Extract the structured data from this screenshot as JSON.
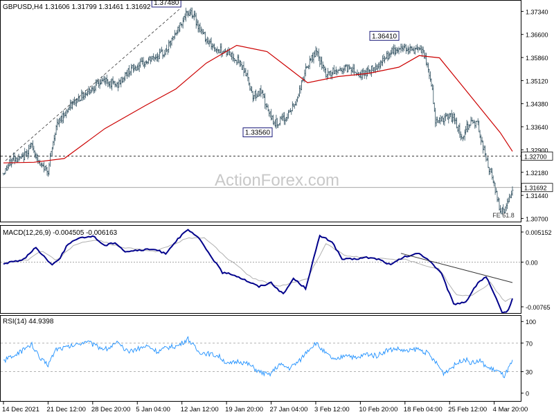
{
  "chart_data": [
    {
      "type": "candlestick",
      "panel": "price",
      "header": "GBPUSD,H4  1.31606 1.31799 1.31461 1.31692",
      "y_ticks": [
        "1.37340",
        "1.36600",
        "1.35860",
        "1.35120",
        "1.34380",
        "1.33640",
        "1.32900",
        "1.32180",
        "1.31440",
        "1.30700"
      ],
      "y_tick_values": [
        1.3734,
        1.366,
        1.3586,
        1.3512,
        1.3438,
        1.3364,
        1.329,
        1.3218,
        1.3144,
        1.307
      ],
      "ylim": [
        1.3062,
        1.3766
      ],
      "x_tick_labels": [
        "14 Dec 2021",
        "21 Dec 12:00",
        "28 Dec 20:00",
        "5 Jan 04:00",
        "12 Jan 12:00",
        "19 Jan 20:00",
        "27 Jan 04:00",
        "3 Feb 12:00",
        "10 Feb 20:00",
        "18 Feb 04:00",
        "25 Feb 12:00",
        "4 Mar 20:00"
      ],
      "x_tick_index": [
        0,
        44,
        88,
        132,
        176,
        220,
        264,
        308,
        352,
        396,
        440,
        484
      ],
      "bar_count": 503,
      "close_path": [
        {
          "i": 0,
          "v": 1.3215
        },
        {
          "i": 10,
          "v": 1.3265
        },
        {
          "i": 18,
          "v": 1.326
        },
        {
          "i": 28,
          "v": 1.3305
        },
        {
          "i": 36,
          "v": 1.324
        },
        {
          "i": 44,
          "v": 1.3225
        },
        {
          "i": 52,
          "v": 1.3365
        },
        {
          "i": 62,
          "v": 1.3415
        },
        {
          "i": 74,
          "v": 1.3455
        },
        {
          "i": 88,
          "v": 1.349
        },
        {
          "i": 100,
          "v": 1.3515
        },
        {
          "i": 112,
          "v": 1.3495
        },
        {
          "i": 124,
          "v": 1.3545
        },
        {
          "i": 136,
          "v": 1.3562
        },
        {
          "i": 148,
          "v": 1.3585
        },
        {
          "i": 160,
          "v": 1.3605
        },
        {
          "i": 168,
          "v": 1.365
        },
        {
          "i": 178,
          "v": 1.3715
        },
        {
          "i": 185,
          "v": 1.3735
        },
        {
          "i": 196,
          "v": 1.3665
        },
        {
          "i": 208,
          "v": 1.3615
        },
        {
          "i": 220,
          "v": 1.3605
        },
        {
          "i": 230,
          "v": 1.358
        },
        {
          "i": 238,
          "v": 1.3545
        },
        {
          "i": 246,
          "v": 1.3465
        },
        {
          "i": 254,
          "v": 1.3475
        },
        {
          "i": 262,
          "v": 1.3405
        },
        {
          "i": 268,
          "v": 1.3375
        },
        {
          "i": 278,
          "v": 1.339
        },
        {
          "i": 288,
          "v": 1.344
        },
        {
          "i": 298,
          "v": 1.3545
        },
        {
          "i": 308,
          "v": 1.3605
        },
        {
          "i": 318,
          "v": 1.353
        },
        {
          "i": 330,
          "v": 1.3545
        },
        {
          "i": 342,
          "v": 1.3555
        },
        {
          "i": 352,
          "v": 1.353
        },
        {
          "i": 362,
          "v": 1.3545
        },
        {
          "i": 374,
          "v": 1.3575
        },
        {
          "i": 384,
          "v": 1.3605
        },
        {
          "i": 396,
          "v": 1.362
        },
        {
          "i": 404,
          "v": 1.361
        },
        {
          "i": 414,
          "v": 1.3605
        },
        {
          "i": 422,
          "v": 1.3505
        },
        {
          "i": 426,
          "v": 1.3385
        },
        {
          "i": 434,
          "v": 1.339
        },
        {
          "i": 444,
          "v": 1.3395
        },
        {
          "i": 452,
          "v": 1.333
        },
        {
          "i": 460,
          "v": 1.338
        },
        {
          "i": 468,
          "v": 1.337
        },
        {
          "i": 476,
          "v": 1.326
        },
        {
          "i": 484,
          "v": 1.3175
        },
        {
          "i": 490,
          "v": 1.3095
        },
        {
          "i": 496,
          "v": 1.3105
        },
        {
          "i": 502,
          "v": 1.3169
        }
      ],
      "ma_path": [
        {
          "i": 0,
          "v": 1.3248
        },
        {
          "i": 30,
          "v": 1.325
        },
        {
          "i": 60,
          "v": 1.3262
        },
        {
          "i": 100,
          "v": 1.3358
        },
        {
          "i": 140,
          "v": 1.3432
        },
        {
          "i": 170,
          "v": 1.3485
        },
        {
          "i": 200,
          "v": 1.3568
        },
        {
          "i": 230,
          "v": 1.3625
        },
        {
          "i": 260,
          "v": 1.3605
        },
        {
          "i": 280,
          "v": 1.3555
        },
        {
          "i": 300,
          "v": 1.3505
        },
        {
          "i": 330,
          "v": 1.3525
        },
        {
          "i": 360,
          "v": 1.3535
        },
        {
          "i": 390,
          "v": 1.3555
        },
        {
          "i": 410,
          "v": 1.3592
        },
        {
          "i": 430,
          "v": 1.3585
        },
        {
          "i": 450,
          "v": 1.3505
        },
        {
          "i": 470,
          "v": 1.3425
        },
        {
          "i": 490,
          "v": 1.3345
        },
        {
          "i": 502,
          "v": 1.3285
        }
      ],
      "trendline": [
        {
          "i": 2,
          "v": 1.3255
        },
        {
          "i": 175,
          "v": 1.3745
        }
      ],
      "horizontal_level": 1.327,
      "current_level": 1.31692,
      "annotations": [
        {
          "text": "1.37480",
          "i": 175,
          "v": 1.3748
        },
        {
          "text": "1.33560",
          "i": 265,
          "v": 1.3356
        },
        {
          "text": "1.36410",
          "i": 390,
          "v": 1.3641
        },
        {
          "text": "FE 61.8",
          "i": 496,
          "v": 1.3082
        }
      ],
      "price_tags": [
        {
          "text": "1.32700",
          "v": 1.327
        },
        {
          "text": "1.31692",
          "v": 1.31692
        }
      ],
      "watermark": "ActionForex.com",
      "colors": {
        "bars": "#2f4f5f",
        "ma": "#cc0000",
        "trend": "#333333",
        "level": "#333333"
      }
    },
    {
      "type": "line",
      "panel": "macd",
      "header": "MACD(12,26,9) -0.004505 -0.006163",
      "y_ticks": [
        "0.005152",
        "0.00",
        "-0.00765"
      ],
      "y_tick_values": [
        0.005152,
        0.0,
        -0.00765
      ],
      "ylim": [
        -0.0086,
        0.0061
      ],
      "macd_path": [
        {
          "i": 0,
          "v": -0.0003
        },
        {
          "i": 20,
          "v": 0.0005
        },
        {
          "i": 32,
          "v": 0.0025
        },
        {
          "i": 40,
          "v": 0.001
        },
        {
          "i": 48,
          "v": -0.0005
        },
        {
          "i": 56,
          "v": 0.0008
        },
        {
          "i": 64,
          "v": 0.0032
        },
        {
          "i": 74,
          "v": 0.004
        },
        {
          "i": 88,
          "v": 0.0045
        },
        {
          "i": 100,
          "v": 0.0028
        },
        {
          "i": 110,
          "v": 0.0034
        },
        {
          "i": 120,
          "v": 0.0018
        },
        {
          "i": 132,
          "v": 0.002
        },
        {
          "i": 148,
          "v": 0.0022
        },
        {
          "i": 160,
          "v": 0.0015
        },
        {
          "i": 172,
          "v": 0.004
        },
        {
          "i": 182,
          "v": 0.0055
        },
        {
          "i": 192,
          "v": 0.0042
        },
        {
          "i": 204,
          "v": 0.0012
        },
        {
          "i": 216,
          "v": -0.0018
        },
        {
          "i": 228,
          "v": -0.0022
        },
        {
          "i": 240,
          "v": -0.0032
        },
        {
          "i": 252,
          "v": -0.0042
        },
        {
          "i": 264,
          "v": -0.0035
        },
        {
          "i": 276,
          "v": -0.0055
        },
        {
          "i": 286,
          "v": -0.0028
        },
        {
          "i": 298,
          "v": -0.0045
        },
        {
          "i": 312,
          "v": 0.0045
        },
        {
          "i": 324,
          "v": 0.0035
        },
        {
          "i": 334,
          "v": 0.0005
        },
        {
          "i": 346,
          "v": 0.0005
        },
        {
          "i": 358,
          "v": 0.0008
        },
        {
          "i": 370,
          "v": 0.0005
        },
        {
          "i": 382,
          "v": -0.0005
        },
        {
          "i": 394,
          "v": 0.0008
        },
        {
          "i": 410,
          "v": 0.0015
        },
        {
          "i": 420,
          "v": 0.0003
        },
        {
          "i": 432,
          "v": -0.002
        },
        {
          "i": 444,
          "v": -0.0072
        },
        {
          "i": 456,
          "v": -0.0068
        },
        {
          "i": 468,
          "v": -0.0035
        },
        {
          "i": 476,
          "v": -0.0025
        },
        {
          "i": 484,
          "v": -0.0055
        },
        {
          "i": 492,
          "v": -0.0088
        },
        {
          "i": 498,
          "v": -0.0082
        },
        {
          "i": 502,
          "v": -0.0062
        }
      ],
      "signal_path": [
        {
          "i": 0,
          "v": -0.0002
        },
        {
          "i": 24,
          "v": 0.0004
        },
        {
          "i": 38,
          "v": 0.002
        },
        {
          "i": 52,
          "v": 0.0002
        },
        {
          "i": 70,
          "v": 0.003
        },
        {
          "i": 92,
          "v": 0.0038
        },
        {
          "i": 118,
          "v": 0.0025
        },
        {
          "i": 150,
          "v": 0.0018
        },
        {
          "i": 180,
          "v": 0.004
        },
        {
          "i": 198,
          "v": 0.0042
        },
        {
          "i": 222,
          "v": 0.0005
        },
        {
          "i": 246,
          "v": -0.0028
        },
        {
          "i": 272,
          "v": -0.0042
        },
        {
          "i": 300,
          "v": -0.0028
        },
        {
          "i": 318,
          "v": 0.0032
        },
        {
          "i": 338,
          "v": 0.001
        },
        {
          "i": 370,
          "v": 0.0006
        },
        {
          "i": 396,
          "v": 0.0004
        },
        {
          "i": 430,
          "v": -0.0012
        },
        {
          "i": 446,
          "v": -0.0055
        },
        {
          "i": 462,
          "v": -0.0058
        },
        {
          "i": 480,
          "v": -0.0035
        },
        {
          "i": 494,
          "v": -0.0068
        },
        {
          "i": 502,
          "v": -0.0062
        }
      ],
      "trendline": [
        {
          "i": 392,
          "v": 0.0015
        },
        {
          "i": 502,
          "v": -0.0035
        }
      ],
      "colors": {
        "macd": "#00008b",
        "signal": "#b0b0b0",
        "trend": "#333333"
      }
    },
    {
      "type": "line",
      "panel": "rsi",
      "header": "RSI(14) 44.9398",
      "y_ticks": [
        "100",
        "70",
        "30",
        "0"
      ],
      "y_tick_values": [
        100,
        70,
        30,
        0
      ],
      "ylim": [
        -10,
        107
      ],
      "levels": [
        70,
        30
      ],
      "rsi_path": [
        {
          "i": 0,
          "v": 45
        },
        {
          "i": 10,
          "v": 52
        },
        {
          "i": 20,
          "v": 60
        },
        {
          "i": 28,
          "v": 68
        },
        {
          "i": 36,
          "v": 48
        },
        {
          "i": 44,
          "v": 40
        },
        {
          "i": 52,
          "v": 62
        },
        {
          "i": 62,
          "v": 64
        },
        {
          "i": 72,
          "v": 68
        },
        {
          "i": 82,
          "v": 73
        },
        {
          "i": 92,
          "v": 65
        },
        {
          "i": 102,
          "v": 62
        },
        {
          "i": 112,
          "v": 70
        },
        {
          "i": 122,
          "v": 58
        },
        {
          "i": 132,
          "v": 62
        },
        {
          "i": 142,
          "v": 66
        },
        {
          "i": 152,
          "v": 58
        },
        {
          "i": 162,
          "v": 64
        },
        {
          "i": 172,
          "v": 66
        },
        {
          "i": 182,
          "v": 76
        },
        {
          "i": 192,
          "v": 58
        },
        {
          "i": 202,
          "v": 55
        },
        {
          "i": 212,
          "v": 52
        },
        {
          "i": 222,
          "v": 40
        },
        {
          "i": 232,
          "v": 45
        },
        {
          "i": 242,
          "v": 40
        },
        {
          "i": 252,
          "v": 30
        },
        {
          "i": 262,
          "v": 25
        },
        {
          "i": 272,
          "v": 40
        },
        {
          "i": 282,
          "v": 35
        },
        {
          "i": 292,
          "v": 45
        },
        {
          "i": 300,
          "v": 60
        },
        {
          "i": 308,
          "v": 70
        },
        {
          "i": 318,
          "v": 55
        },
        {
          "i": 328,
          "v": 45
        },
        {
          "i": 338,
          "v": 55
        },
        {
          "i": 348,
          "v": 48
        },
        {
          "i": 358,
          "v": 55
        },
        {
          "i": 368,
          "v": 52
        },
        {
          "i": 378,
          "v": 60
        },
        {
          "i": 388,
          "v": 62
        },
        {
          "i": 398,
          "v": 58
        },
        {
          "i": 408,
          "v": 62
        },
        {
          "i": 418,
          "v": 56
        },
        {
          "i": 428,
          "v": 40
        },
        {
          "i": 434,
          "v": 28
        },
        {
          "i": 444,
          "v": 38
        },
        {
          "i": 454,
          "v": 48
        },
        {
          "i": 462,
          "v": 42
        },
        {
          "i": 470,
          "v": 45
        },
        {
          "i": 478,
          "v": 35
        },
        {
          "i": 486,
          "v": 32
        },
        {
          "i": 494,
          "v": 24
        },
        {
          "i": 502,
          "v": 44
        }
      ],
      "colors": {
        "rsi": "#1e90ff",
        "level": "#999999"
      }
    }
  ]
}
